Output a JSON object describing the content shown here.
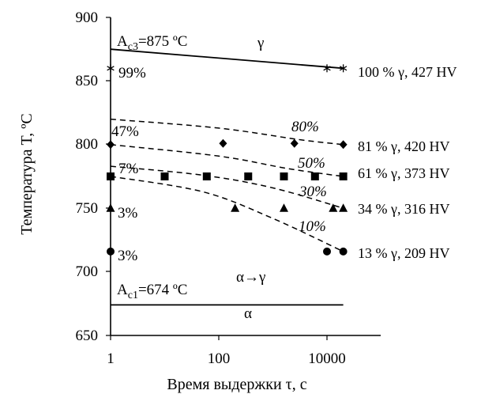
{
  "chart_data": {
    "type": "scatter",
    "x_scale": "log",
    "xlim": [
      1,
      100000
    ],
    "ylim": [
      650,
      900
    ],
    "xlabel": "Время выдержки τ, с",
    "ylabel": "Температура T, ºC",
    "x_ticks": [
      "1",
      "100",
      "10000"
    ],
    "y_ticks": [
      "650",
      "700",
      "750",
      "800",
      "850",
      "900"
    ],
    "grid": false,
    "series": [
      {
        "marker": "asterisk",
        "points": [
          {
            "x": 1,
            "y": 860
          },
          {
            "x": 10000,
            "y": 860
          },
          {
            "x": 20000,
            "y": 860
          }
        ]
      },
      {
        "marker": "diamond",
        "points": [
          {
            "x": 1,
            "y": 800
          },
          {
            "x": 120,
            "y": 801
          },
          {
            "x": 2500,
            "y": 801
          },
          {
            "x": 20000,
            "y": 800
          }
        ]
      },
      {
        "marker": "square",
        "points": [
          {
            "x": 1,
            "y": 775
          },
          {
            "x": 10,
            "y": 775
          },
          {
            "x": 60,
            "y": 775
          },
          {
            "x": 350,
            "y": 775
          },
          {
            "x": 1600,
            "y": 775
          },
          {
            "x": 6000,
            "y": 775
          },
          {
            "x": 20000,
            "y": 775
          }
        ]
      },
      {
        "marker": "triangle",
        "points": [
          {
            "x": 1,
            "y": 750
          },
          {
            "x": 200,
            "y": 750
          },
          {
            "x": 1600,
            "y": 750
          },
          {
            "x": 13000,
            "y": 750
          },
          {
            "x": 20000,
            "y": 750
          }
        ]
      },
      {
        "marker": "circle",
        "points": [
          {
            "x": 1,
            "y": 716
          },
          {
            "x": 10000,
            "y": 716
          },
          {
            "x": 20000,
            "y": 716
          }
        ]
      }
    ],
    "solid_lines": [
      {
        "label": "A_c3",
        "points": [
          {
            "x": 1,
            "y": 875
          },
          {
            "x": 20000,
            "y": 860
          }
        ]
      },
      {
        "label": "A_c1",
        "points": [
          {
            "x": 1,
            "y": 674
          },
          {
            "x": 20000,
            "y": 674
          }
        ]
      }
    ],
    "dashed_curves": [
      {
        "label": "80%",
        "points": [
          {
            "x": 1,
            "y": 820
          },
          {
            "x": 100,
            "y": 813
          },
          {
            "x": 3000,
            "y": 804
          },
          {
            "x": 20000,
            "y": 800
          }
        ]
      },
      {
        "label": "50%",
        "points": [
          {
            "x": 1,
            "y": 800
          },
          {
            "x": 100,
            "y": 791
          },
          {
            "x": 2000,
            "y": 781
          },
          {
            "x": 20000,
            "y": 775
          }
        ]
      },
      {
        "label": "30%",
        "points": [
          {
            "x": 1,
            "y": 783
          },
          {
            "x": 50,
            "y": 776
          },
          {
            "x": 1000,
            "y": 766
          },
          {
            "x": 20000,
            "y": 750
          }
        ]
      },
      {
        "label": "10%",
        "points": [
          {
            "x": 1,
            "y": 775
          },
          {
            "x": 50,
            "y": 763
          },
          {
            "x": 1000,
            "y": 742
          },
          {
            "x": 20000,
            "y": 716
          }
        ]
      }
    ],
    "annotations": {
      "ac3": "A",
      "ac3_sub": "c3",
      "ac3_value": "=875 ºC",
      "ac1": "A",
      "ac1_sub": "c1",
      "ac1_value": "=674 ºC",
      "gamma": "γ",
      "alpha_to_gamma": "α→γ",
      "alpha": "α",
      "p99": "99%",
      "p47": "47%",
      "p7": "7%",
      "p3a": "3%",
      "p3b": "3%",
      "c80": "80%",
      "c50": "50%",
      "c30": "30%",
      "c10": "10%"
    },
    "right_labels": [
      "100 % γ, 427 HV",
      "81 % γ, 420 HV",
      "61 % γ, 373 HV",
      "34 % γ, 316 HV",
      "13 % γ, 209 HV"
    ]
  }
}
